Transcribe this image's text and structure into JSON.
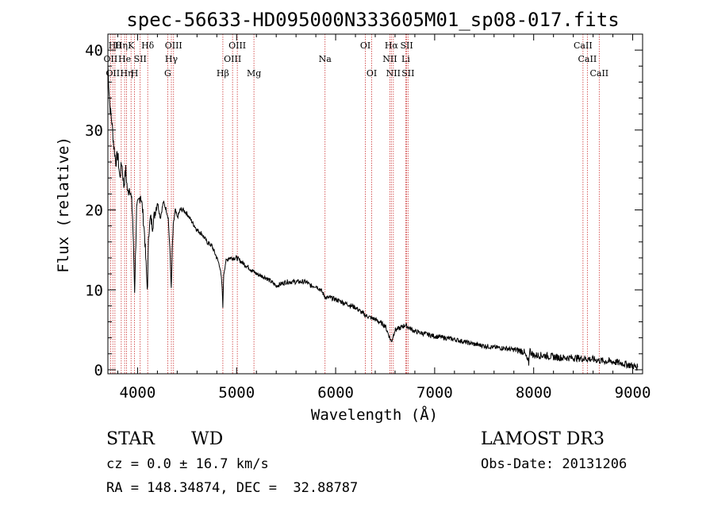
{
  "chart_data": {
    "type": "line",
    "title": "spec-56633-HD095000N333605M01_sp08-017.fits",
    "xlabel": "Wavelength (Å)",
    "ylabel": "Flux (relative)",
    "xlim": [
      3700,
      9100
    ],
    "ylim": [
      -0.5,
      42
    ],
    "xticks": [
      4000,
      5000,
      6000,
      7000,
      8000,
      9000
    ],
    "xtick_labels": [
      "4000",
      "5000",
      "6000",
      "7000",
      "8000",
      "9000"
    ],
    "yticks": [
      0,
      10,
      20,
      30,
      40
    ],
    "ytick_labels": [
      "0",
      "10",
      "20",
      "30",
      "40"
    ],
    "grid": false,
    "series": [
      {
        "name": "spectrum",
        "x": [
          3700,
          3720,
          3740,
          3760,
          3780,
          3800,
          3820,
          3840,
          3860,
          3880,
          3900,
          3920,
          3940,
          3950,
          3970,
          3990,
          4010,
          4030,
          4050,
          4070,
          4090,
          4101,
          4110,
          4130,
          4150,
          4180,
          4200,
          4230,
          4260,
          4290,
          4310,
          4330,
          4340,
          4350,
          4360,
          4380,
          4400,
          4430,
          4460,
          4500,
          4550,
          4600,
          4650,
          4700,
          4750,
          4800,
          4830,
          4850,
          4861,
          4870,
          4890,
          4920,
          4950,
          5000,
          5050,
          5100,
          5150,
          5200,
          5300,
          5400,
          5500,
          5600,
          5700,
          5750,
          5800,
          5850,
          5900,
          5950,
          6000,
          6100,
          6200,
          6300,
          6400,
          6500,
          6563,
          6600,
          6650,
          6700,
          6750,
          6800,
          6900,
          7000,
          7100,
          7200,
          7300,
          7400,
          7500,
          7600,
          7700,
          7800,
          7900,
          7950,
          7960,
          7970,
          8000,
          8100,
          8200,
          8300,
          8400,
          8500,
          8600,
          8700,
          8800,
          8900,
          9000,
          9050
        ],
        "values": [
          38,
          33,
          31,
          28,
          26,
          27,
          24,
          26,
          23,
          25,
          22,
          23,
          21,
          19,
          10,
          20,
          21,
          22,
          20,
          17,
          12,
          10,
          17,
          19,
          18,
          20,
          21,
          19,
          21,
          20,
          19,
          14,
          10,
          15,
          18,
          20,
          19,
          20,
          20,
          19.5,
          18.5,
          17.5,
          17,
          16,
          15.5,
          14,
          13,
          11,
          8,
          12,
          13.5,
          14,
          14,
          14,
          13.5,
          13,
          12.5,
          12,
          11.5,
          10.5,
          11,
          11,
          11,
          10.5,
          10.5,
          10,
          9,
          9,
          8.8,
          8.3,
          7.8,
          6.8,
          6.3,
          5.5,
          3.5,
          5,
          5.2,
          5.6,
          5.2,
          4.8,
          4.5,
          4.2,
          4,
          3.8,
          3.5,
          3.2,
          3,
          2.8,
          2.7,
          2.5,
          2.3,
          0.8,
          2.6,
          2.2,
          1.8,
          1.8,
          1.6,
          1.5,
          1.5,
          1.4,
          1.3,
          1.1,
          1.0,
          0.8,
          0.5,
          0.3
        ]
      }
    ],
    "line_markers": [
      {
        "wavelength": 3727,
        "row": 1,
        "label": "OII"
      },
      {
        "wavelength": 3750,
        "row": 2,
        "label": "OII"
      },
      {
        "wavelength": 3771,
        "row": 0,
        "label": "Hθ"
      },
      {
        "wavelength": 3835,
        "row": 0,
        "label": "Hη"
      },
      {
        "wavelength": 3869,
        "row": 1,
        "label": "He"
      },
      {
        "wavelength": 3889,
        "row": 2,
        "label": "Hη"
      },
      {
        "wavelength": 3934,
        "row": 0,
        "label": "K"
      },
      {
        "wavelength": 3969,
        "row": 2,
        "label": "H"
      },
      {
        "wavelength": 4026,
        "row": 1,
        "label": "SII"
      },
      {
        "wavelength": 4102,
        "row": 0,
        "label": "Hδ"
      },
      {
        "wavelength": 4304,
        "row": 2,
        "label": "G"
      },
      {
        "wavelength": 4341,
        "row": 1,
        "label": "Hγ"
      },
      {
        "wavelength": 4363,
        "row": 0,
        "label": "OIII"
      },
      {
        "wavelength": 4861,
        "row": 2,
        "label": "Hβ"
      },
      {
        "wavelength": 4959,
        "row": 1,
        "label": "OIII"
      },
      {
        "wavelength": 5007,
        "row": 0,
        "label": "OIII"
      },
      {
        "wavelength": 5175,
        "row": 2,
        "label": "Mg"
      },
      {
        "wavelength": 5893,
        "row": 1,
        "label": "Na"
      },
      {
        "wavelength": 6300,
        "row": 0,
        "label": "OI"
      },
      {
        "wavelength": 6364,
        "row": 2,
        "label": "OI"
      },
      {
        "wavelength": 6548,
        "row": 1,
        "label": "NII"
      },
      {
        "wavelength": 6563,
        "row": 0,
        "label": "Hα"
      },
      {
        "wavelength": 6583,
        "row": 2,
        "label": "NII"
      },
      {
        "wavelength": 6717,
        "row": 0,
        "label": "SII"
      },
      {
        "wavelength": 6708,
        "row": 1,
        "label": "Li"
      },
      {
        "wavelength": 6731,
        "row": 2,
        "label": "SII"
      },
      {
        "wavelength": 8498,
        "row": 0,
        "label": "CaII"
      },
      {
        "wavelength": 8542,
        "row": 1,
        "label": "CaII"
      },
      {
        "wavelength": 8662,
        "row": 2,
        "label": "CaII"
      }
    ],
    "line_marker_color": "#cc3333"
  },
  "info": {
    "object_class": "STAR",
    "subclass": "WD",
    "survey": "LAMOST DR3",
    "redshift": "cz = 0.0 ± 16.7 km/s",
    "obs_date": "Obs-Date: 20131206",
    "coords": "RA = 148.34874, DEC =  32.88787"
  }
}
